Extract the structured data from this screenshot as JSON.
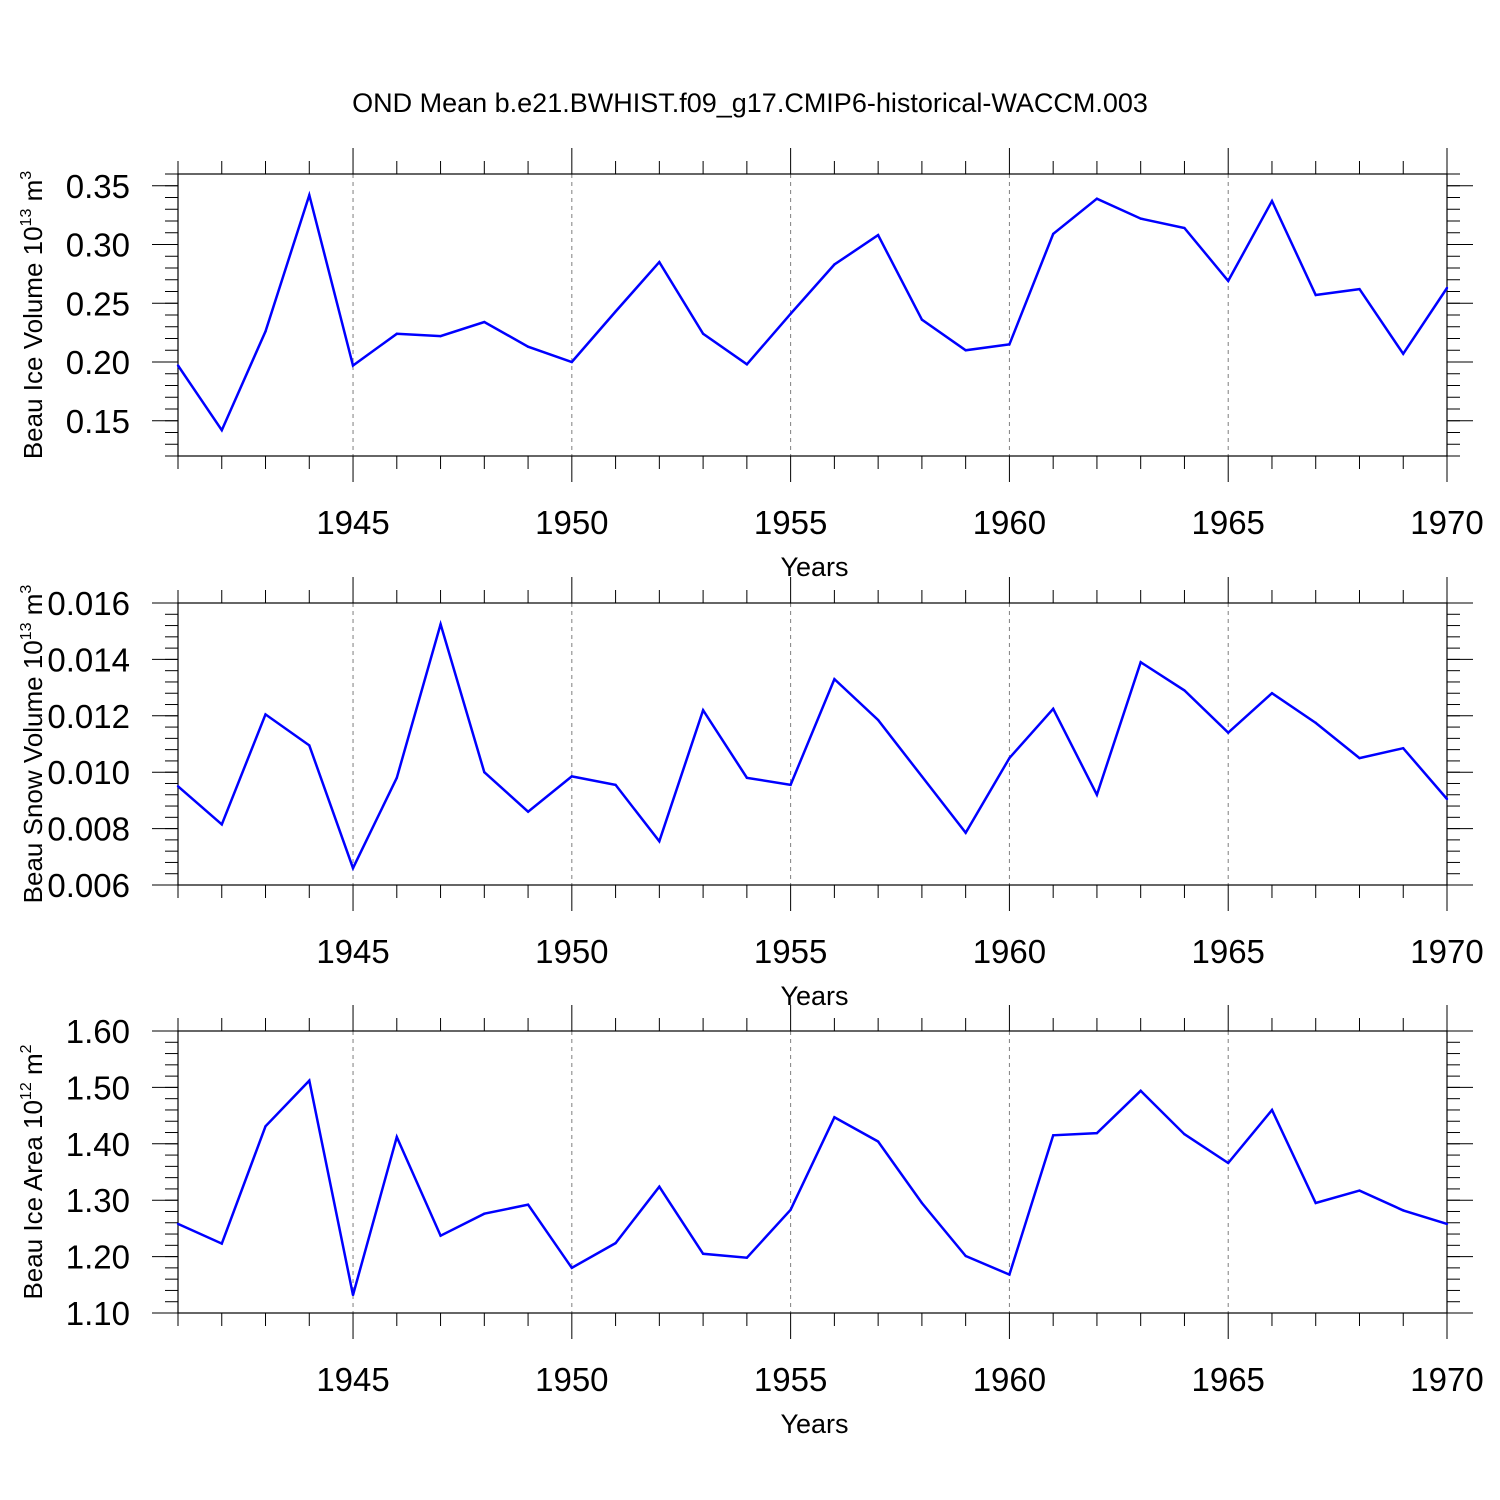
{
  "title": "OND Mean b.e21.BWHIST.f09_g17.CMIP6-historical-WACCM.003",
  "colors": {
    "line": "#0000ff",
    "axis": "#000000",
    "grid": "#7f7f7f"
  },
  "chart_data": [
    {
      "type": "line",
      "name": "ice-volume",
      "ylabel": {
        "base": "Beau Ice Volume 10",
        "exp": "13",
        "unit": " m",
        "unit_exp": "3"
      },
      "xlabel": "Years",
      "xlim": [
        1941,
        1970
      ],
      "ylim": [
        0.12,
        0.36
      ],
      "xticks": [
        1945,
        1950,
        1955,
        1960,
        1965,
        1970
      ],
      "xtick_labels": [
        "1945",
        "1950",
        "1955",
        "1960",
        "1965",
        "1970"
      ],
      "yticks": [
        0.15,
        0.2,
        0.25,
        0.3,
        0.35
      ],
      "ytick_labels": [
        "0.15",
        "0.20",
        "0.25",
        "0.30",
        "0.35"
      ],
      "yminor_step": 0.01,
      "x": [
        1941,
        1942,
        1943,
        1944,
        1945,
        1946,
        1947,
        1948,
        1949,
        1950,
        1951,
        1952,
        1953,
        1954,
        1955,
        1956,
        1957,
        1958,
        1959,
        1960,
        1961,
        1962,
        1963,
        1964,
        1965,
        1966,
        1967,
        1968,
        1969,
        1970
      ],
      "values": [
        0.197,
        0.142,
        0.226,
        0.342,
        0.197,
        0.224,
        0.222,
        0.234,
        0.213,
        0.2,
        0.243,
        0.285,
        0.224,
        0.198,
        0.241,
        0.283,
        0.308,
        0.236,
        0.21,
        0.215,
        0.309,
        0.339,
        0.322,
        0.314,
        0.269,
        0.337,
        0.257,
        0.262,
        0.207,
        0.263
      ]
    },
    {
      "type": "line",
      "name": "snow-volume",
      "ylabel": {
        "base": "Beau Snow Volume 10",
        "exp": "13",
        "unit": " m",
        "unit_exp": "3"
      },
      "xlabel": "Years",
      "xlim": [
        1941,
        1970
      ],
      "ylim": [
        0.006,
        0.016
      ],
      "xticks": [
        1945,
        1950,
        1955,
        1960,
        1965,
        1970
      ],
      "xtick_labels": [
        "1945",
        "1950",
        "1955",
        "1960",
        "1965",
        "1970"
      ],
      "yticks": [
        0.006,
        0.008,
        0.01,
        0.012,
        0.014,
        0.016
      ],
      "ytick_labels": [
        "0.006",
        "0.008",
        "0.010",
        "0.012",
        "0.014",
        "0.016"
      ],
      "yminor_step": 0.0004,
      "x": [
        1941,
        1942,
        1943,
        1944,
        1945,
        1946,
        1947,
        1948,
        1949,
        1950,
        1951,
        1952,
        1953,
        1954,
        1955,
        1956,
        1957,
        1958,
        1959,
        1960,
        1961,
        1962,
        1963,
        1964,
        1965,
        1966,
        1967,
        1968,
        1969,
        1970
      ],
      "values": [
        0.0095,
        0.00815,
        0.01205,
        0.01095,
        0.0066,
        0.0098,
        0.01525,
        0.01,
        0.0086,
        0.00985,
        0.00955,
        0.00755,
        0.0122,
        0.0098,
        0.00955,
        0.0133,
        0.01185,
        0.00985,
        0.00785,
        0.0105,
        0.01225,
        0.0092,
        0.0139,
        0.0129,
        0.0114,
        0.0128,
        0.01175,
        0.0105,
        0.01085,
        0.00905
      ]
    },
    {
      "type": "line",
      "name": "ice-area",
      "ylabel": {
        "base": "Beau Ice Area 10",
        "exp": "12",
        "unit": " m",
        "unit_exp": "2"
      },
      "xlabel": "Years",
      "xlim": [
        1941,
        1970
      ],
      "ylim": [
        1.1,
        1.6
      ],
      "xticks": [
        1945,
        1950,
        1955,
        1960,
        1965,
        1970
      ],
      "xtick_labels": [
        "1945",
        "1950",
        "1955",
        "1960",
        "1965",
        "1970"
      ],
      "yticks": [
        1.1,
        1.2,
        1.3,
        1.4,
        1.5,
        1.6
      ],
      "ytick_labels": [
        "1.10",
        "1.20",
        "1.30",
        "1.40",
        "1.50",
        "1.60"
      ],
      "yminor_step": 0.02,
      "x": [
        1941,
        1942,
        1943,
        1944,
        1945,
        1946,
        1947,
        1948,
        1949,
        1950,
        1951,
        1952,
        1953,
        1954,
        1955,
        1956,
        1957,
        1958,
        1959,
        1960,
        1961,
        1962,
        1963,
        1964,
        1965,
        1966,
        1967,
        1968,
        1969,
        1970
      ],
      "values": [
        1.258,
        1.223,
        1.431,
        1.512,
        1.132,
        1.412,
        1.237,
        1.276,
        1.292,
        1.18,
        1.224,
        1.324,
        1.205,
        1.198,
        1.283,
        1.447,
        1.404,
        1.295,
        1.201,
        1.168,
        1.415,
        1.419,
        1.494,
        1.417,
        1.366,
        1.46,
        1.295,
        1.317,
        1.282,
        1.258
      ]
    }
  ]
}
